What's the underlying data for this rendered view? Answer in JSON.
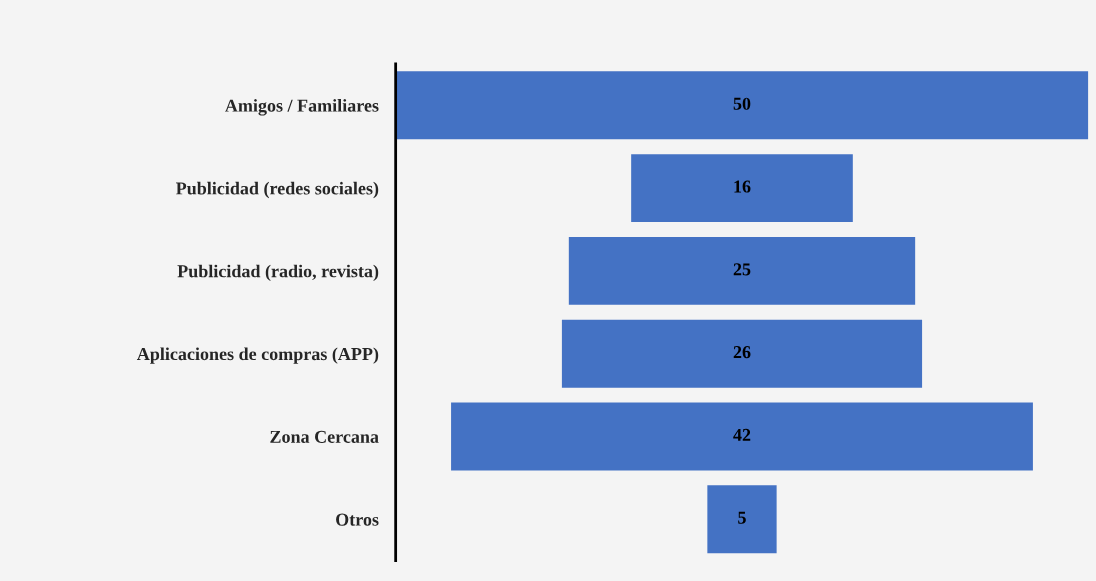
{
  "chart_data": {
    "type": "other",
    "categories": [
      "Amigos / Familiares",
      "Publicidad (redes sociales)",
      "Publicidad (radio, revista)",
      "Aplicaciones de compras (APP)",
      "Zona Cercana",
      "Otros"
    ],
    "values": [
      50,
      16,
      25,
      26,
      42,
      5
    ],
    "color": "#4472c4",
    "data_labels": true
  }
}
